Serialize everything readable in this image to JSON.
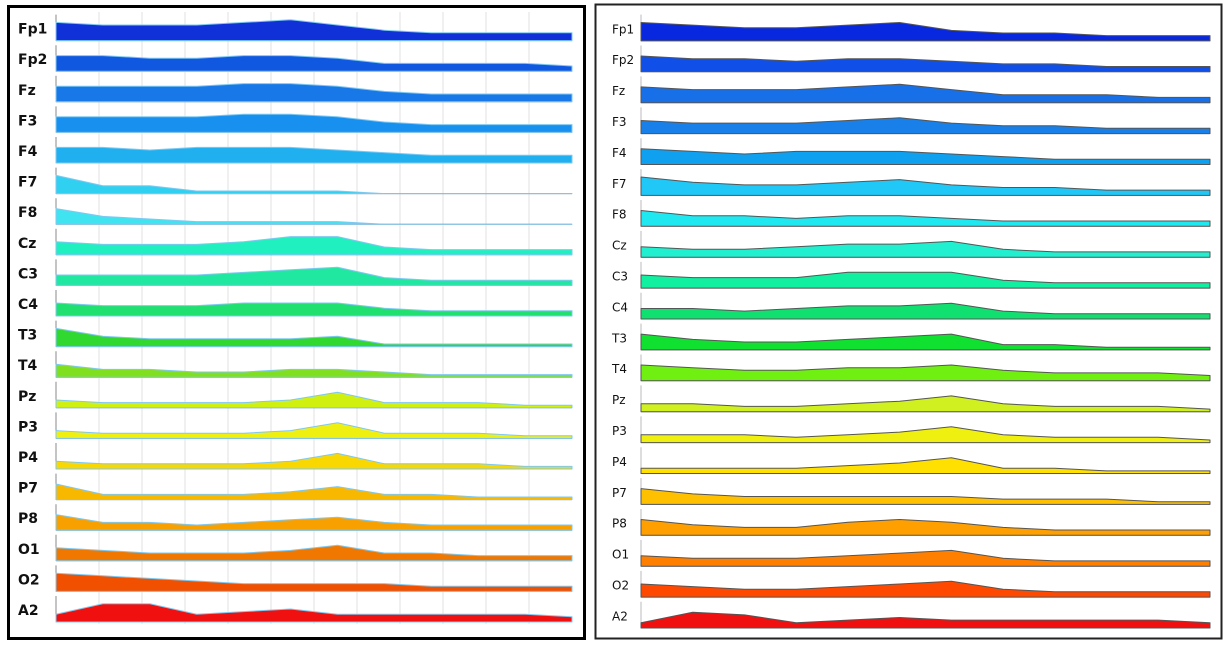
{
  "chart_data": [
    {
      "type": "area",
      "ylim": [
        0,
        10
      ],
      "series": [
        {
          "name": "Fp1",
          "color": "#1030d8",
          "values": [
            7,
            6,
            6,
            6,
            7,
            8,
            6,
            4,
            3,
            3,
            3,
            3
          ]
        },
        {
          "name": "Fp2",
          "color": "#1058e0",
          "values": [
            6,
            6,
            5,
            5,
            6,
            6,
            5,
            3,
            3,
            3,
            3,
            2
          ]
        },
        {
          "name": "Fz",
          "color": "#1878e8",
          "values": [
            6,
            6,
            6,
            6,
            7,
            7,
            6,
            4,
            3,
            3,
            3,
            3
          ]
        },
        {
          "name": "F3",
          "color": "#1890f0",
          "values": [
            6,
            6,
            6,
            6,
            7,
            7,
            6,
            4,
            3,
            3,
            3,
            3
          ]
        },
        {
          "name": "F4",
          "color": "#20b0f0",
          "values": [
            6,
            6,
            5,
            6,
            6,
            6,
            5,
            4,
            3,
            3,
            3,
            3
          ]
        },
        {
          "name": "F7",
          "color": "#30d0f0",
          "values": [
            7,
            3,
            3,
            1,
            1,
            1,
            1,
            0,
            0,
            0,
            0,
            0
          ]
        },
        {
          "name": "F8",
          "color": "#40e4f0",
          "values": [
            6,
            3,
            2,
            1,
            1,
            1,
            1,
            0,
            0,
            0,
            0,
            0
          ]
        },
        {
          "name": "Cz",
          "color": "#20f0c0",
          "values": [
            5,
            4,
            4,
            4,
            5,
            7,
            7,
            3,
            2,
            2,
            2,
            2
          ]
        },
        {
          "name": "C3",
          "color": "#20e8a0",
          "values": [
            4,
            4,
            4,
            4,
            5,
            6,
            7,
            3,
            2,
            2,
            2,
            2
          ]
        },
        {
          "name": "C4",
          "color": "#20e070",
          "values": [
            5,
            4,
            4,
            4,
            5,
            5,
            5,
            3,
            2,
            2,
            2,
            2
          ]
        },
        {
          "name": "T3",
          "color": "#30d830",
          "values": [
            7,
            4,
            3,
            3,
            3,
            3,
            4,
            1,
            1,
            1,
            1,
            1
          ]
        },
        {
          "name": "T4",
          "color": "#80e020",
          "values": [
            5,
            3,
            3,
            2,
            2,
            3,
            3,
            2,
            1,
            1,
            1,
            1
          ]
        },
        {
          "name": "Pz",
          "color": "#d0f010",
          "values": [
            3,
            2,
            2,
            2,
            2,
            3,
            6,
            2,
            2,
            2,
            1,
            1
          ]
        },
        {
          "name": "P3",
          "color": "#f0f010",
          "values": [
            3,
            2,
            2,
            2,
            2,
            3,
            6,
            2,
            2,
            2,
            1,
            1
          ]
        },
        {
          "name": "P4",
          "color": "#f8d800",
          "values": [
            3,
            2,
            2,
            2,
            2,
            3,
            6,
            2,
            2,
            2,
            1,
            1
          ]
        },
        {
          "name": "P7",
          "color": "#f8b800",
          "values": [
            6,
            2,
            2,
            2,
            2,
            3,
            5,
            2,
            2,
            1,
            1,
            1
          ]
        },
        {
          "name": "P8",
          "color": "#f8a000",
          "values": [
            6,
            3,
            3,
            2,
            3,
            4,
            5,
            3,
            2,
            2,
            2,
            2
          ]
        },
        {
          "name": "O1",
          "color": "#f07800",
          "values": [
            5,
            4,
            3,
            3,
            3,
            4,
            6,
            3,
            3,
            2,
            2,
            2
          ]
        },
        {
          "name": "O2",
          "color": "#f05000",
          "values": [
            7,
            6,
            5,
            4,
            3,
            3,
            3,
            3,
            2,
            2,
            2,
            2
          ]
        },
        {
          "name": "A2",
          "color": "#f01010",
          "values": [
            3,
            7,
            7,
            3,
            4,
            5,
            3,
            3,
            3,
            3,
            3,
            2
          ]
        }
      ]
    },
    {
      "type": "area",
      "ylim": [
        0,
        10
      ],
      "series": [
        {
          "name": "Fp1",
          "color": "#0828e0",
          "values": [
            7,
            6,
            5,
            5,
            6,
            7,
            4,
            3,
            3,
            2,
            2,
            2
          ]
        },
        {
          "name": "Fp2",
          "color": "#1050e8",
          "values": [
            6,
            5,
            5,
            4,
            5,
            5,
            4,
            3,
            3,
            2,
            2,
            2
          ]
        },
        {
          "name": "Fz",
          "color": "#1870e8",
          "values": [
            6,
            5,
            5,
            5,
            6,
            7,
            5,
            3,
            3,
            3,
            2,
            2
          ]
        },
        {
          "name": "F3",
          "color": "#1880e8",
          "values": [
            5,
            4,
            4,
            4,
            5,
            6,
            4,
            3,
            3,
            2,
            2,
            2
          ]
        },
        {
          "name": "F4",
          "color": "#10a0f0",
          "values": [
            6,
            5,
            4,
            5,
            5,
            5,
            4,
            3,
            2,
            2,
            2,
            2
          ]
        },
        {
          "name": "F7",
          "color": "#20c8f8",
          "values": [
            7,
            5,
            4,
            4,
            5,
            6,
            4,
            3,
            3,
            2,
            2,
            2
          ]
        },
        {
          "name": "F8",
          "color": "#20e8f0",
          "values": [
            6,
            4,
            4,
            3,
            4,
            4,
            3,
            2,
            2,
            2,
            2,
            2
          ]
        },
        {
          "name": "Cz",
          "color": "#20f0d0",
          "values": [
            4,
            3,
            3,
            4,
            5,
            5,
            6,
            3,
            2,
            2,
            2,
            2
          ]
        },
        {
          "name": "C3",
          "color": "#10f0a0",
          "values": [
            5,
            4,
            4,
            4,
            6,
            6,
            6,
            3,
            2,
            2,
            2,
            2
          ]
        },
        {
          "name": "C4",
          "color": "#10e070",
          "values": [
            4,
            4,
            3,
            4,
            5,
            5,
            6,
            3,
            2,
            2,
            2,
            2
          ]
        },
        {
          "name": "T3",
          "color": "#10e030",
          "values": [
            6,
            4,
            3,
            3,
            4,
            5,
            6,
            2,
            2,
            1,
            1,
            1
          ]
        },
        {
          "name": "T4",
          "color": "#70f010",
          "values": [
            6,
            5,
            4,
            4,
            5,
            5,
            6,
            4,
            3,
            3,
            3,
            2
          ]
        },
        {
          "name": "Pz",
          "color": "#d0f020",
          "values": [
            3,
            3,
            2,
            2,
            3,
            4,
            6,
            3,
            2,
            2,
            2,
            1
          ]
        },
        {
          "name": "P3",
          "color": "#f0f010",
          "values": [
            3,
            3,
            3,
            2,
            3,
            4,
            6,
            3,
            2,
            2,
            2,
            1
          ]
        },
        {
          "name": "P4",
          "color": "#ffe000",
          "values": [
            2,
            2,
            2,
            2,
            3,
            4,
            6,
            2,
            2,
            1,
            1,
            1
          ]
        },
        {
          "name": "P7",
          "color": "#ffc000",
          "values": [
            6,
            4,
            3,
            3,
            3,
            3,
            3,
            2,
            2,
            2,
            1,
            1
          ]
        },
        {
          "name": "P8",
          "color": "#ffa000",
          "values": [
            6,
            4,
            3,
            3,
            5,
            6,
            5,
            3,
            2,
            2,
            2,
            2
          ]
        },
        {
          "name": "O1",
          "color": "#ff8000",
          "values": [
            4,
            3,
            3,
            3,
            4,
            5,
            6,
            3,
            2,
            2,
            2,
            2
          ]
        },
        {
          "name": "O2",
          "color": "#ff4800",
          "values": [
            5,
            4,
            3,
            3,
            4,
            5,
            6,
            3,
            2,
            2,
            2,
            2
          ]
        },
        {
          "name": "A2",
          "color": "#f01010",
          "values": [
            2,
            6,
            5,
            2,
            3,
            4,
            3,
            3,
            3,
            3,
            3,
            2
          ]
        }
      ]
    }
  ]
}
